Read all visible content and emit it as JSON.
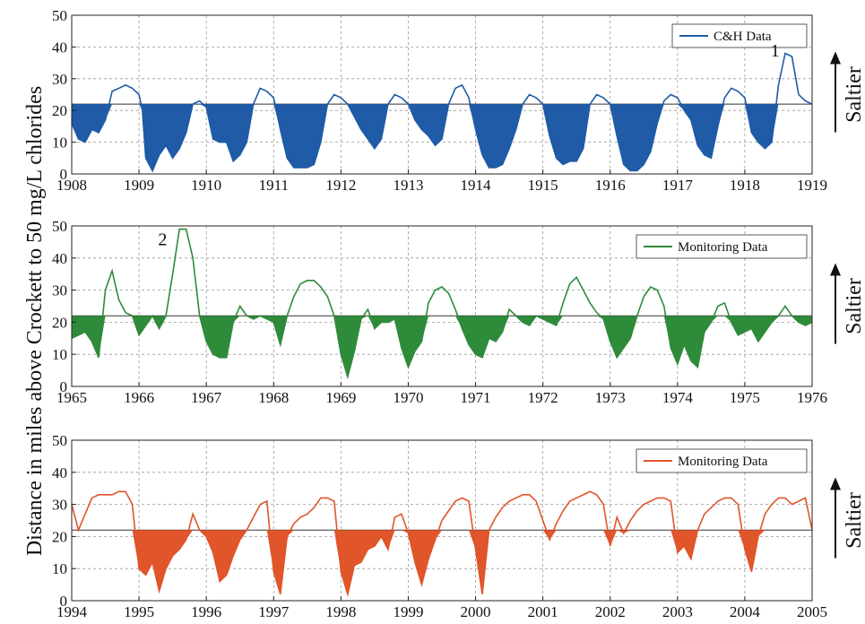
{
  "ylabel": "Distance in miles above Crockett to 50 mg/L chlorides",
  "chart_data": [
    {
      "type": "area",
      "legend": "C&H Data",
      "color": "#1f5ba6",
      "xlim": [
        1908,
        1919
      ],
      "ylim": [
        0,
        50
      ],
      "threshold": 22,
      "xticks": [
        1908,
        1909,
        1910,
        1911,
        1912,
        1913,
        1914,
        1915,
        1916,
        1917,
        1918,
        1919
      ],
      "yticks": [
        0,
        10,
        20,
        30,
        40,
        50
      ],
      "side_label": "Saltier",
      "annotation": {
        "text": "1",
        "x": 1918.45,
        "y": 37
      },
      "x": [
        1908.0,
        1908.1,
        1908.2,
        1908.3,
        1908.4,
        1908.5,
        1908.6,
        1908.7,
        1908.8,
        1908.9,
        1909.0,
        1909.05,
        1909.1,
        1909.2,
        1909.3,
        1909.4,
        1909.5,
        1909.6,
        1909.7,
        1909.8,
        1909.9,
        1910.0,
        1910.1,
        1910.2,
        1910.3,
        1910.4,
        1910.5,
        1910.6,
        1910.7,
        1910.8,
        1910.9,
        1911.0,
        1911.1,
        1911.2,
        1911.3,
        1911.4,
        1911.5,
        1911.6,
        1911.7,
        1911.8,
        1911.9,
        1912.0,
        1912.1,
        1912.2,
        1912.3,
        1912.4,
        1912.5,
        1912.6,
        1912.7,
        1912.8,
        1912.9,
        1913.0,
        1913.1,
        1913.2,
        1913.3,
        1913.4,
        1913.5,
        1913.6,
        1913.7,
        1913.8,
        1913.9,
        1914.0,
        1914.1,
        1914.2,
        1914.3,
        1914.4,
        1914.5,
        1914.6,
        1914.7,
        1914.8,
        1914.9,
        1915.0,
        1915.1,
        1915.2,
        1915.3,
        1915.4,
        1915.5,
        1915.6,
        1915.7,
        1915.8,
        1915.9,
        1916.0,
        1916.1,
        1916.2,
        1916.3,
        1916.4,
        1916.5,
        1916.6,
        1916.7,
        1916.8,
        1916.9,
        1917.0,
        1917.1,
        1917.2,
        1917.3,
        1917.4,
        1917.5,
        1917.6,
        1917.7,
        1917.8,
        1917.9,
        1918.0,
        1918.1,
        1918.2,
        1918.3,
        1918.4,
        1918.5,
        1918.6,
        1918.7,
        1918.8,
        1918.9,
        1919.0
      ],
      "y": [
        16,
        11,
        10,
        14,
        13,
        17,
        26,
        27,
        28,
        27,
        25,
        20,
        5,
        1,
        6,
        9,
        5,
        8,
        13,
        22,
        23,
        21,
        11,
        10,
        10,
        4,
        6,
        10,
        22,
        27,
        26,
        24,
        14,
        5,
        2,
        2,
        2,
        3,
        10,
        22,
        25,
        24,
        22,
        18,
        14,
        11,
        8,
        11,
        22,
        25,
        24,
        22,
        17,
        14,
        12,
        9,
        11,
        22,
        27,
        28,
        24,
        14,
        6,
        2,
        2,
        3,
        8,
        14,
        22,
        25,
        24,
        22,
        12,
        5,
        3,
        4,
        4,
        8,
        22,
        25,
        24,
        22,
        12,
        3,
        1,
        1,
        3,
        7,
        16,
        23,
        25,
        24,
        20,
        17,
        9,
        6,
        5,
        15,
        24,
        27,
        26,
        24,
        13,
        10,
        8,
        10,
        28,
        38,
        37,
        25,
        23,
        22
      ]
    },
    {
      "type": "area",
      "legend": "Monitoring Data",
      "color": "#2e8b3a",
      "xlim": [
        1965,
        1976
      ],
      "ylim": [
        0,
        50
      ],
      "threshold": 22,
      "xticks": [
        1965,
        1966,
        1967,
        1968,
        1969,
        1970,
        1971,
        1972,
        1973,
        1974,
        1975,
        1976
      ],
      "yticks": [
        0,
        10,
        20,
        30,
        40,
        50
      ],
      "side_label": "Saltier",
      "annotation": {
        "text": "2",
        "x": 1966.35,
        "y": 44
      },
      "x": [
        1965.0,
        1965.1,
        1965.2,
        1965.3,
        1965.4,
        1965.5,
        1965.6,
        1965.7,
        1965.8,
        1965.9,
        1966.0,
        1966.1,
        1966.2,
        1966.3,
        1966.4,
        1966.5,
        1966.6,
        1966.7,
        1966.8,
        1966.9,
        1967.0,
        1967.1,
        1967.2,
        1967.3,
        1967.4,
        1967.5,
        1967.6,
        1967.7,
        1967.8,
        1967.9,
        1968.0,
        1968.1,
        1968.2,
        1968.3,
        1968.4,
        1968.5,
        1968.6,
        1968.7,
        1968.8,
        1968.9,
        1969.0,
        1969.1,
        1969.2,
        1969.3,
        1969.4,
        1969.5,
        1969.6,
        1969.7,
        1969.8,
        1969.9,
        1970.0,
        1970.1,
        1970.2,
        1970.3,
        1970.4,
        1970.5,
        1970.6,
        1970.7,
        1970.8,
        1970.9,
        1971.0,
        1971.1,
        1971.2,
        1971.3,
        1971.4,
        1971.5,
        1971.6,
        1971.7,
        1971.8,
        1971.9,
        1972.0,
        1972.1,
        1972.2,
        1972.3,
        1972.4,
        1972.5,
        1972.6,
        1972.7,
        1972.8,
        1972.9,
        1973.0,
        1973.1,
        1973.2,
        1973.3,
        1973.4,
        1973.5,
        1973.6,
        1973.7,
        1973.8,
        1973.9,
        1974.0,
        1974.1,
        1974.2,
        1974.3,
        1974.4,
        1974.5,
        1974.6,
        1974.7,
        1974.8,
        1974.9,
        1975.0,
        1975.1,
        1975.2,
        1975.3,
        1975.4,
        1975.5,
        1975.6,
        1975.7,
        1975.8,
        1975.9,
        1976.0
      ],
      "y": [
        15,
        16,
        17,
        14,
        9,
        30,
        36,
        27,
        23,
        22,
        16,
        19,
        22,
        18,
        22,
        35,
        49,
        49,
        40,
        22,
        14,
        10,
        9,
        9,
        20,
        25,
        22,
        21,
        22,
        21,
        20,
        13,
        22,
        28,
        32,
        33,
        33,
        31,
        28,
        22,
        10,
        3,
        11,
        21,
        24,
        18,
        20,
        20,
        21,
        12,
        6,
        11,
        14,
        26,
        30,
        31,
        29,
        24,
        18,
        13,
        10,
        9,
        15,
        14,
        17,
        24,
        22,
        20,
        19,
        22,
        21,
        20,
        19,
        26,
        32,
        34,
        30,
        26,
        23,
        21,
        14,
        9,
        12,
        15,
        22,
        28,
        31,
        30,
        25,
        12,
        7,
        13,
        8,
        6,
        17,
        20,
        25,
        26,
        20,
        16,
        17,
        18,
        14,
        17,
        20,
        22,
        25,
        22,
        20,
        19,
        20
      ]
    },
    {
      "type": "area",
      "legend": "Monitoring Data",
      "color": "#e0552a",
      "xlim": [
        1994,
        2005
      ],
      "ylim": [
        0,
        50
      ],
      "threshold": 22,
      "xticks": [
        1994,
        1995,
        1996,
        1997,
        1998,
        1999,
        2000,
        2001,
        2002,
        2003,
        2004,
        2005
      ],
      "yticks": [
        0,
        10,
        20,
        30,
        40,
        50
      ],
      "side_label": "Saltier",
      "x": [
        1994.0,
        1994.1,
        1994.2,
        1994.3,
        1994.4,
        1994.5,
        1994.6,
        1994.7,
        1994.8,
        1994.9,
        1995.0,
        1995.1,
        1995.2,
        1995.3,
        1995.4,
        1995.5,
        1995.6,
        1995.7,
        1995.8,
        1995.9,
        1996.0,
        1996.1,
        1996.2,
        1996.3,
        1996.4,
        1996.5,
        1996.6,
        1996.7,
        1996.8,
        1996.9,
        1997.0,
        1997.1,
        1997.2,
        1997.3,
        1997.4,
        1997.5,
        1997.6,
        1997.7,
        1997.8,
        1997.9,
        1998.0,
        1998.1,
        1998.2,
        1998.3,
        1998.4,
        1998.5,
        1998.6,
        1998.7,
        1998.8,
        1998.9,
        1999.0,
        1999.1,
        1999.2,
        1999.3,
        1999.4,
        1999.5,
        1999.6,
        1999.7,
        1999.8,
        1999.9,
        2000.0,
        2000.1,
        2000.2,
        2000.3,
        2000.4,
        2000.5,
        2000.6,
        2000.7,
        2000.8,
        2000.9,
        2001.0,
        2001.1,
        2001.2,
        2001.3,
        2001.4,
        2001.5,
        2001.6,
        2001.7,
        2001.8,
        2001.9,
        2002.0,
        2002.1,
        2002.2,
        2002.3,
        2002.4,
        2002.5,
        2002.6,
        2002.7,
        2002.8,
        2002.9,
        2003.0,
        2003.1,
        2003.2,
        2003.3,
        2003.4,
        2003.5,
        2003.6,
        2003.7,
        2003.8,
        2003.9,
        2004.0,
        2004.1,
        2004.2,
        2004.3,
        2004.4,
        2004.5,
        2004.6,
        2004.7,
        2004.8,
        2004.9,
        2005.0
      ],
      "y": [
        30,
        22,
        27,
        32,
        33,
        33,
        33,
        34,
        34,
        30,
        10,
        8,
        12,
        3,
        10,
        14,
        16,
        19,
        27,
        22,
        20,
        15,
        6,
        8,
        14,
        19,
        22,
        26,
        30,
        31,
        9,
        2,
        20,
        24,
        26,
        27,
        29,
        32,
        32,
        31,
        9,
        2,
        11,
        12,
        16,
        17,
        20,
        16,
        26,
        27,
        21,
        12,
        5,
        13,
        19,
        25,
        28,
        31,
        32,
        31,
        16,
        2,
        22,
        26,
        29,
        31,
        32,
        33,
        33,
        31,
        25,
        19,
        24,
        28,
        31,
        32,
        33,
        34,
        33,
        30,
        17,
        26,
        21,
        25,
        28,
        30,
        31,
        32,
        32,
        31,
        15,
        17,
        13,
        22,
        27,
        29,
        31,
        32,
        32,
        30,
        16,
        9,
        20,
        27,
        30,
        32,
        32,
        30,
        31,
        32,
        22
      ]
    }
  ]
}
